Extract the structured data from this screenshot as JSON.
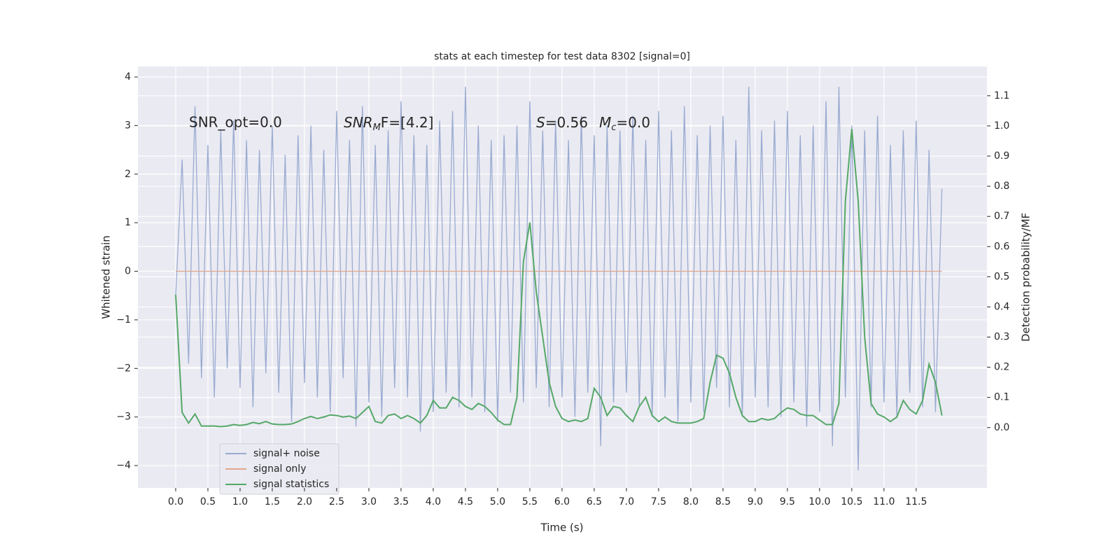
{
  "chart_data": {
    "type": "line",
    "title": "stats at each timestep for test data 8302 [signal=0]",
    "x_label": "Time (s)",
    "y_label": "Whitened strain",
    "y2_label": "Detection probability/MF",
    "annotations": [
      "SNR_opt=0.0",
      [
        "SNR",
        "M",
        "F=[4.2]"
      ],
      [
        "S",
        "=0.56",
        "M",
        "c",
        "=0.0"
      ]
    ],
    "x": [
      0.0,
      0.1,
      0.2,
      0.3,
      0.4,
      0.5,
      0.6,
      0.7,
      0.8,
      0.9,
      1.0,
      1.1,
      1.2,
      1.3,
      1.4,
      1.5,
      1.6,
      1.7,
      1.8,
      1.9,
      2.0,
      2.1,
      2.2,
      2.3,
      2.4,
      2.5,
      2.6,
      2.7,
      2.8,
      2.9,
      3.0,
      3.1,
      3.2,
      3.3,
      3.4,
      3.5,
      3.6,
      3.7,
      3.8,
      3.9,
      4.0,
      4.1,
      4.2,
      4.3,
      4.4,
      4.5,
      4.6,
      4.7,
      4.8,
      4.9,
      5.0,
      5.1,
      5.2,
      5.3,
      5.4,
      5.5,
      5.6,
      5.7,
      5.8,
      5.9,
      6.0,
      6.1,
      6.2,
      6.3,
      6.4,
      6.5,
      6.6,
      6.7,
      6.8,
      6.9,
      7.0,
      7.1,
      7.2,
      7.3,
      7.4,
      7.5,
      7.6,
      7.7,
      7.8,
      7.9,
      8.0,
      8.1,
      8.2,
      8.3,
      8.4,
      8.5,
      8.6,
      8.7,
      8.8,
      8.9,
      9.0,
      9.1,
      9.2,
      9.3,
      9.4,
      9.5,
      9.6,
      9.7,
      9.8,
      9.9,
      10.0,
      10.1,
      10.2,
      10.3,
      10.4,
      10.5,
      10.6,
      10.7,
      10.8,
      10.9,
      11.0,
      11.1,
      11.2,
      11.3,
      11.4,
      11.5,
      11.6,
      11.7,
      11.8,
      11.9
    ],
    "series": [
      {
        "name": "signal+ noise",
        "color": "#9aabd1",
        "values": [
          -0.5,
          2.3,
          -1.9,
          3.4,
          -2.2,
          2.6,
          -2.6,
          2.9,
          -2.0,
          3.1,
          -2.4,
          2.7,
          -2.8,
          2.5,
          -2.1,
          3.0,
          -2.5,
          2.4,
          -3.1,
          2.8,
          -2.3,
          3.0,
          -2.6,
          2.5,
          -2.9,
          3.3,
          -2.2,
          2.7,
          -3.2,
          3.4,
          -2.7,
          2.6,
          -3.0,
          2.9,
          -2.4,
          3.5,
          -2.6,
          2.8,
          -3.3,
          2.6,
          -2.9,
          3.1,
          -2.5,
          3.3,
          -2.8,
          3.8,
          -2.6,
          3.0,
          -2.9,
          2.7,
          -3.1,
          2.8,
          -2.5,
          3.0,
          -2.7,
          3.5,
          -2.4,
          2.9,
          -2.8,
          3.1,
          -2.6,
          2.7,
          -3.0,
          3.2,
          -2.5,
          2.8,
          -3.6,
          3.0,
          -2.7,
          2.9,
          -2.5,
          3.2,
          -2.8,
          2.7,
          -3.0,
          3.3,
          -2.6,
          2.9,
          -3.1,
          3.4,
          -2.7,
          2.8,
          -2.9,
          3.0,
          -2.4,
          3.2,
          -2.8,
          2.7,
          -3.0,
          3.8,
          -2.6,
          2.9,
          -2.8,
          3.1,
          -3.0,
          3.3,
          -2.7,
          2.8,
          -3.2,
          3.0,
          -2.9,
          3.5,
          -3.6,
          3.8,
          -2.6,
          3.0,
          -4.1,
          2.9,
          -2.8,
          3.2,
          -2.7,
          2.6,
          -3.0,
          2.9,
          -2.5,
          3.1,
          -2.8,
          2.5,
          -2.9,
          1.7
        ]
      },
      {
        "name": "signal only",
        "color": "#e2a58c",
        "values": [
          0,
          0,
          0,
          0,
          0,
          0,
          0,
          0,
          0,
          0,
          0,
          0,
          0,
          0,
          0,
          0,
          0,
          0,
          0,
          0,
          0,
          0,
          0,
          0,
          0,
          0,
          0,
          0,
          0,
          0,
          0,
          0,
          0,
          0,
          0,
          0,
          0,
          0,
          0,
          0,
          0,
          0,
          0,
          0,
          0,
          0,
          0,
          0,
          0,
          0,
          0,
          0,
          0,
          0,
          0,
          0,
          0,
          0,
          0,
          0,
          0,
          0,
          0,
          0,
          0,
          0,
          0,
          0,
          0,
          0,
          0,
          0,
          0,
          0,
          0,
          0,
          0,
          0,
          0,
          0,
          0,
          0,
          0,
          0,
          0,
          0,
          0,
          0,
          0,
          0,
          0,
          0,
          0,
          0,
          0,
          0,
          0,
          0,
          0,
          0,
          0,
          0,
          0,
          0,
          0,
          0,
          0,
          0,
          0,
          0,
          0,
          0,
          0,
          0,
          0,
          0,
          0,
          0,
          0,
          0
        ]
      },
      {
        "name": "signal statistics",
        "color": "#55a868",
        "axis": "y2",
        "values": [
          0.44,
          0.05,
          0.015,
          0.045,
          0.005,
          0.005,
          0.005,
          0.003,
          0.005,
          0.01,
          0.007,
          0.01,
          0.017,
          0.013,
          0.02,
          0.012,
          0.01,
          0.01,
          0.012,
          0.02,
          0.03,
          0.037,
          0.03,
          0.035,
          0.042,
          0.04,
          0.035,
          0.038,
          0.03,
          0.05,
          0.07,
          0.02,
          0.015,
          0.04,
          0.045,
          0.03,
          0.04,
          0.03,
          0.015,
          0.04,
          0.09,
          0.065,
          0.065,
          0.1,
          0.09,
          0.07,
          0.06,
          0.08,
          0.07,
          0.05,
          0.025,
          0.01,
          0.01,
          0.1,
          0.55,
          0.68,
          0.45,
          0.3,
          0.15,
          0.07,
          0.03,
          0.02,
          0.025,
          0.02,
          0.03,
          0.13,
          0.1,
          0.04,
          0.07,
          0.065,
          0.04,
          0.02,
          0.07,
          0.1,
          0.04,
          0.02,
          0.035,
          0.02,
          0.015,
          0.015,
          0.015,
          0.02,
          0.03,
          0.15,
          0.24,
          0.23,
          0.18,
          0.1,
          0.04,
          0.02,
          0.02,
          0.03,
          0.025,
          0.03,
          0.05,
          0.065,
          0.06,
          0.045,
          0.04,
          0.04,
          0.025,
          0.01,
          0.01,
          0.08,
          0.75,
          0.99,
          0.75,
          0.3,
          0.08,
          0.045,
          0.035,
          0.02,
          0.035,
          0.09,
          0.06,
          0.045,
          0.09,
          0.21,
          0.15,
          0.04
        ]
      }
    ],
    "xlim": [
      -0.587,
      12.6
    ],
    "ylim": [
      -4.46,
      4.216
    ],
    "y2lim": [
      -0.2,
      1.197
    ],
    "xticks": [
      {
        "value": 0,
        "label": "0.0"
      },
      {
        "value": 0.5,
        "label": "0.5"
      },
      {
        "value": 1,
        "label": "1.0"
      },
      {
        "value": 1.5,
        "label": "1.5"
      },
      {
        "value": 2,
        "label": "2.0"
      },
      {
        "value": 2.5,
        "label": "2.5"
      },
      {
        "value": 3,
        "label": "3.0"
      },
      {
        "value": 3.5,
        "label": "3.5"
      },
      {
        "value": 4,
        "label": "4.0"
      },
      {
        "value": 4.5,
        "label": "4.5"
      },
      {
        "value": 5,
        "label": "5.0"
      },
      {
        "value": 5.5,
        "label": "5.5"
      },
      {
        "value": 6,
        "label": "6.0"
      },
      {
        "value": 6.5,
        "label": "6.5"
      },
      {
        "value": 7,
        "label": "7.0"
      },
      {
        "value": 7.5,
        "label": "7.5"
      },
      {
        "value": 8,
        "label": "8.0"
      },
      {
        "value": 8.5,
        "label": "8.5"
      },
      {
        "value": 9,
        "label": "9.0"
      },
      {
        "value": 9.5,
        "label": "9.5"
      },
      {
        "value": 10,
        "label": "10.0"
      },
      {
        "value": 10.5,
        "label": "10.5"
      },
      {
        "value": 11,
        "label": "11.0"
      },
      {
        "value": 11.5,
        "label": "11.5"
      }
    ],
    "yticks": [
      {
        "value": -4,
        "label": "−4"
      },
      {
        "value": -3,
        "label": "−3"
      },
      {
        "value": -2,
        "label": "−2"
      },
      {
        "value": -1,
        "label": "−1"
      },
      0,
      1,
      2,
      3,
      4
    ],
    "y2ticks": [
      {
        "value": 0,
        "label": "0.0"
      },
      {
        "value": 0.1,
        "label": "0.1"
      },
      {
        "value": 0.2,
        "label": "0.2"
      },
      {
        "value": 0.3,
        "label": "0.3"
      },
      {
        "value": 0.4,
        "label": "0.4"
      },
      {
        "value": 0.5,
        "label": "0.5"
      },
      {
        "value": 0.6,
        "label": "0.6"
      },
      {
        "value": 0.7,
        "label": "0.7"
      },
      {
        "value": 0.8,
        "label": "0.8"
      },
      {
        "value": 0.9,
        "label": "0.9"
      },
      {
        "value": 1,
        "label": "1.0"
      },
      {
        "value": 1.1,
        "label": "1.1"
      }
    ],
    "grid": true
  }
}
